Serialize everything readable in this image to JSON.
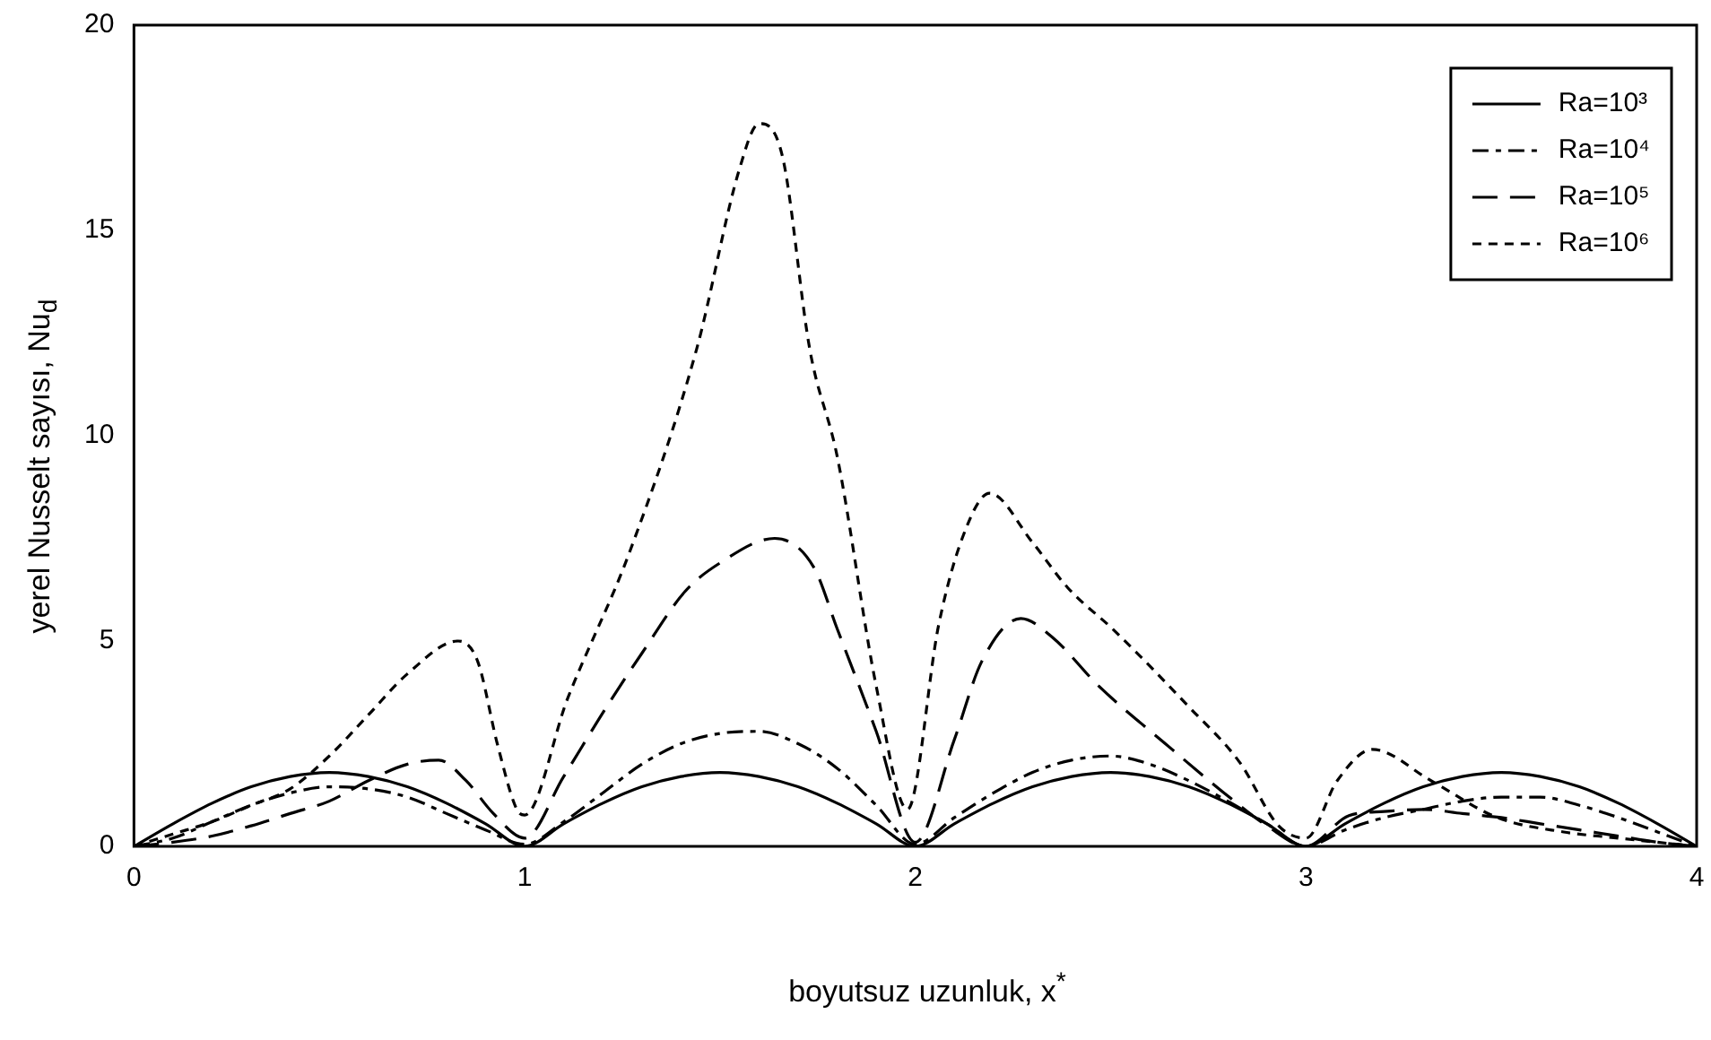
{
  "chart_data": {
    "type": "line",
    "xlabel": "boyutsuz uzunluk, x$^{*}$",
    "ylabel": "yerel Nusselt sayısı, Nu$_{d}$",
    "xlim": [
      0,
      4
    ],
    "ylim": [
      0,
      20
    ],
    "xticks": [
      0,
      1,
      2,
      3,
      4
    ],
    "yticks": [
      0,
      5,
      10,
      15,
      20
    ],
    "grid": false,
    "legend": "top right",
    "marker": "none",
    "series": [
      {
        "name": "Ra=10³",
        "color": "#000000",
        "line_style": "solid",
        "x": [
          0,
          0.1,
          0.2,
          0.3,
          0.4,
          0.5,
          0.6,
          0.7,
          0.8,
          0.9,
          1,
          1.1,
          1.2,
          1.3,
          1.4,
          1.5,
          1.6,
          1.7,
          1.8,
          1.9,
          2,
          2.1,
          2.2,
          2.3,
          2.4,
          2.5,
          2.6,
          2.7,
          2.8,
          2.9,
          3,
          3.1,
          3.2,
          3.3,
          3.4,
          3.5,
          3.6,
          3.7,
          3.8,
          3.9,
          4
        ],
        "values": [
          0,
          0.55,
          1.05,
          1.45,
          1.7,
          1.8,
          1.7,
          1.45,
          1.05,
          0.55,
          0,
          0.55,
          1.05,
          1.45,
          1.7,
          1.8,
          1.7,
          1.45,
          1.05,
          0.55,
          0,
          0.55,
          1.05,
          1.45,
          1.7,
          1.8,
          1.7,
          1.45,
          1.05,
          0.55,
          0,
          0.55,
          1.05,
          1.45,
          1.7,
          1.8,
          1.7,
          1.45,
          1.05,
          0.55,
          0
        ]
      },
      {
        "name": "Ra=10⁴",
        "color": "#000000",
        "line_style": "dashed",
        "x": [
          0,
          0.1,
          0.2,
          0.3,
          0.4,
          0.5,
          0.6,
          0.7,
          0.8,
          0.9,
          1,
          1.1,
          1.2,
          1.3,
          1.4,
          1.5,
          1.6,
          1.7,
          1.8,
          1.9,
          2,
          2.1,
          2.2,
          2.3,
          2.4,
          2.5,
          2.6,
          2.7,
          2.8,
          2.9,
          3,
          3.1,
          3.2,
          3.3,
          3.4,
          3.5,
          3.6,
          3.7,
          3.8,
          3.9,
          4
        ],
        "values": [
          0,
          0.2,
          0.6,
          1.0,
          1.3,
          1.45,
          1.4,
          1.2,
          0.8,
          0.4,
          0.05,
          0.6,
          1.3,
          2.0,
          2.5,
          2.75,
          2.8,
          2.5,
          1.9,
          1.0,
          0.05,
          0.7,
          1.3,
          1.8,
          2.1,
          2.2,
          2.0,
          1.6,
          1.1,
          0.55,
          0,
          0.4,
          0.7,
          0.9,
          1.1,
          1.2,
          1.2,
          1.0,
          0.7,
          0.35,
          0
        ]
      },
      {
        "name": "Ra=10⁵",
        "color": "#000000",
        "line_style": "dashed",
        "x": [
          0,
          0.1,
          0.2,
          0.3,
          0.4,
          0.5,
          0.6,
          0.7,
          0.78,
          0.85,
          0.92,
          1,
          1.1,
          1.21,
          1.3,
          1.41,
          1.5,
          1.64,
          1.74,
          1.8,
          1.9,
          2,
          2.1,
          2.17,
          2.27,
          2.35,
          2.47,
          2.64,
          2.81,
          2.9,
          3,
          3.11,
          3.2,
          3.3,
          3.4,
          3.5,
          3.6,
          3.7,
          3.8,
          3.9,
          4
        ],
        "values": [
          0,
          0.1,
          0.25,
          0.5,
          0.8,
          1.1,
          1.6,
          2.0,
          2.1,
          1.6,
          0.8,
          0.2,
          1.7,
          3.4,
          4.7,
          6.2,
          6.9,
          7.5,
          6.8,
          5.3,
          2.8,
          0.1,
          2.6,
          4.5,
          5.55,
          5.1,
          3.9,
          2.5,
          1.15,
          0.5,
          0,
          0.75,
          0.85,
          0.9,
          0.8,
          0.7,
          0.55,
          0.4,
          0.25,
          0.1,
          0
        ]
      },
      {
        "name": "Ra=10⁶",
        "color": "#000000",
        "line_style": "dotted",
        "x": [
          0,
          0.1,
          0.2,
          0.3,
          0.4,
          0.5,
          0.6,
          0.7,
          0.83,
          0.88,
          0.93,
          0.98,
          1,
          1.11,
          1.27,
          1.44,
          1.55,
          1.6,
          1.66,
          1.73,
          1.8,
          1.9,
          1.98,
          2.06,
          2.12,
          2.19,
          2.3,
          2.39,
          2.51,
          2.7,
          2.83,
          2.93,
          3,
          3.08,
          3.17,
          3.32,
          3.49,
          3.66,
          3.8,
          4
        ],
        "values": [
          0,
          0.3,
          0.6,
          1.0,
          1.4,
          2.2,
          3.2,
          4.2,
          5.0,
          4.5,
          2.5,
          0.9,
          0.76,
          3.6,
          7.2,
          12.1,
          16.5,
          17.6,
          16.8,
          12.1,
          9.5,
          3.9,
          0.9,
          5.4,
          7.5,
          8.6,
          7.4,
          6.3,
          5.25,
          3.4,
          2.05,
          0.5,
          0.2,
          1.6,
          2.36,
          1.6,
          0.7,
          0.35,
          0.2,
          0
        ]
      }
    ]
  }
}
